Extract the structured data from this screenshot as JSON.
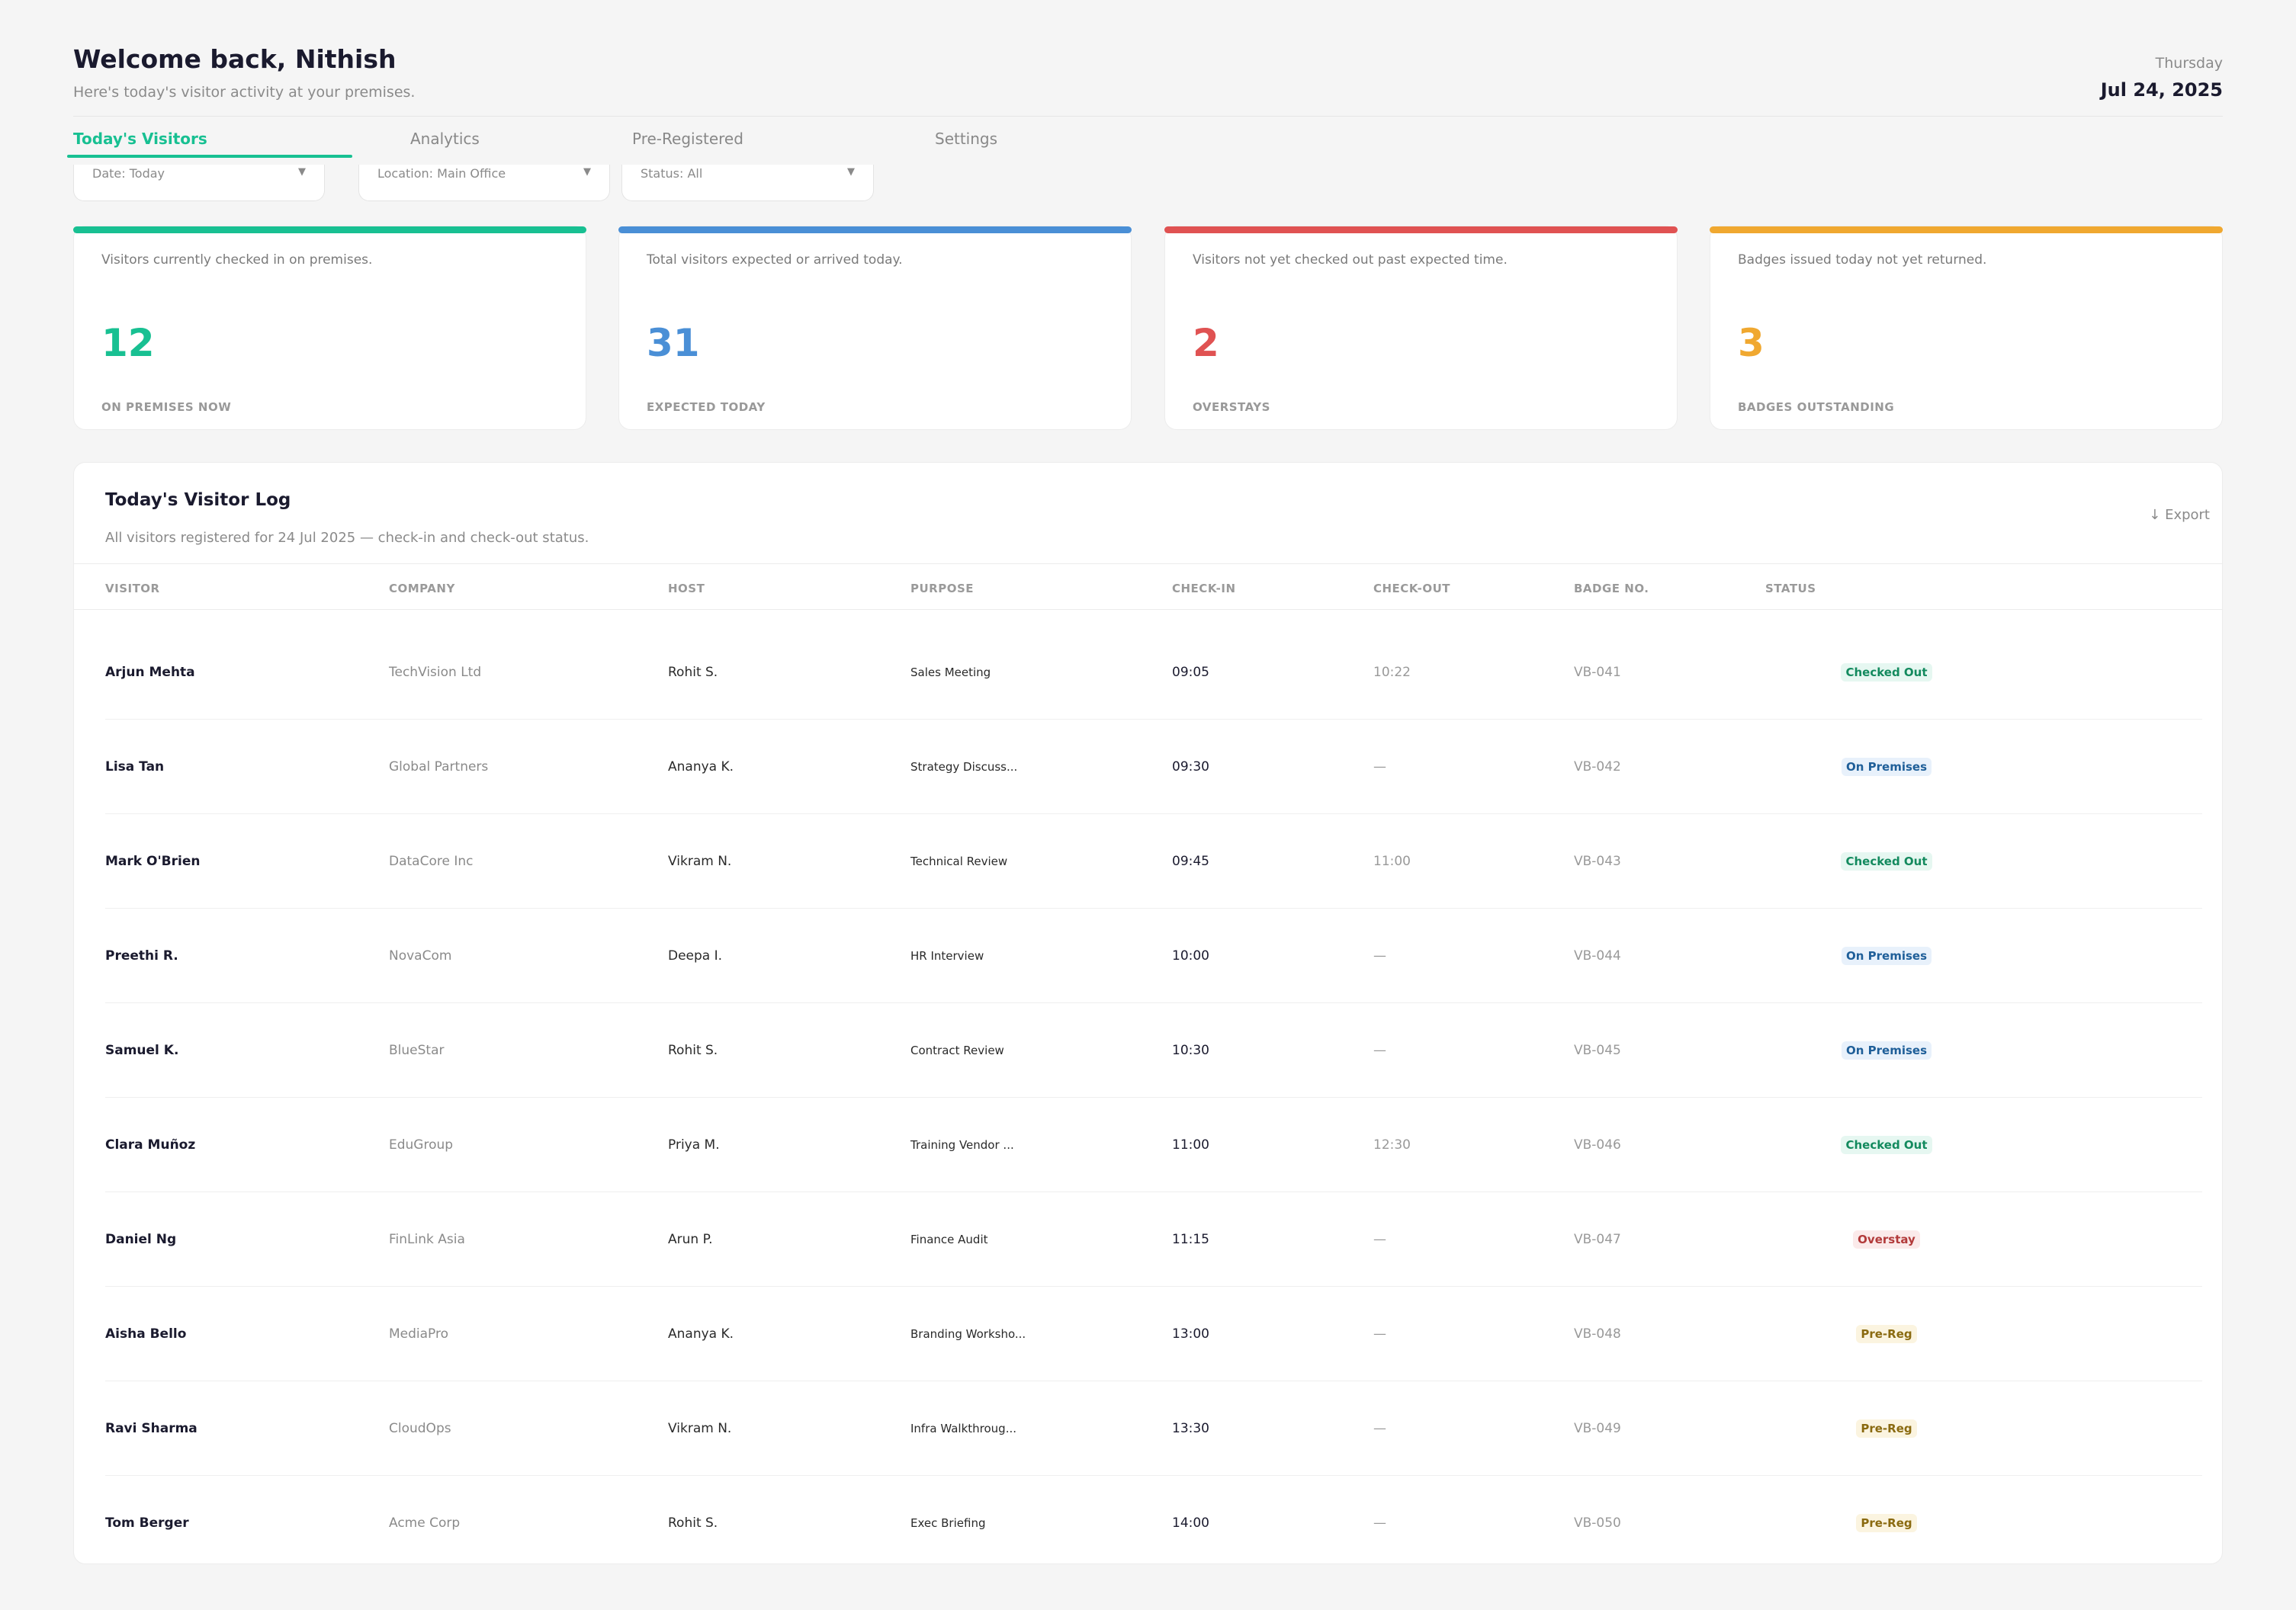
{
  "header": {
    "greeting": "Welcome back, Nithish",
    "subtitle": "Here's today's visitor activity at your premises.",
    "weekday": "Thursday",
    "date": "Jul 24, 2025"
  },
  "tabs": [
    {
      "label": "Today's Visitors",
      "active": true
    },
    {
      "label": "Analytics",
      "active": false
    },
    {
      "label": "Pre-Registered",
      "active": false
    },
    {
      "label": "Settings",
      "active": false
    }
  ],
  "filters": {
    "date": "Date: Today",
    "location": "Location: Main Office",
    "status": "Status: All"
  },
  "stats": [
    {
      "desc": "Visitors currently checked in on premises.",
      "value": "12",
      "caption": "ON PREMISES NOW",
      "color": "#18c092"
    },
    {
      "desc": "Total visitors expected or arrived today.",
      "value": "31",
      "caption": "EXPECTED TODAY",
      "color": "#4a8fd6"
    },
    {
      "desc": "Visitors not yet checked out past expected time.",
      "value": "2",
      "caption": "OVERSTAYS",
      "color": "#e05252"
    },
    {
      "desc": "Badges issued today not yet returned.",
      "value": "3",
      "caption": "BADGES OUTSTANDING",
      "color": "#f0a830"
    }
  ],
  "log": {
    "title": "Today's Visitor Log",
    "subtitle": "All visitors registered for 24 Jul 2025 — check-in and check-out status.",
    "export_label": "↓ Export",
    "columns": [
      "VISITOR",
      "COMPANY",
      "HOST",
      "PURPOSE",
      "CHECK-IN",
      "CHECK-OUT",
      "BADGE NO.",
      "STATUS"
    ],
    "rows": [
      {
        "visitor": "Arjun Mehta",
        "company": "TechVision Ltd",
        "host": "Rohit S.",
        "purpose": "Sales Meeting",
        "checkin": "09:05",
        "checkout": "10:22",
        "badge": "VB-041",
        "status": "Checked Out",
        "kind": "out"
      },
      {
        "visitor": "Lisa Tan",
        "company": "Global Partners",
        "host": "Ananya K.",
        "purpose": "Strategy Discuss...",
        "checkin": "09:30",
        "checkout": "—",
        "badge": "VB-042",
        "status": "On Premises",
        "kind": "prem"
      },
      {
        "visitor": "Mark O'Brien",
        "company": "DataCore Inc",
        "host": "Vikram N.",
        "purpose": "Technical Review",
        "checkin": "09:45",
        "checkout": "11:00",
        "badge": "VB-043",
        "status": "Checked Out",
        "kind": "out"
      },
      {
        "visitor": "Preethi R.",
        "company": "NovaCom",
        "host": "Deepa I.",
        "purpose": "HR Interview",
        "checkin": "10:00",
        "checkout": "—",
        "badge": "VB-044",
        "status": "On Premises",
        "kind": "prem"
      },
      {
        "visitor": "Samuel K.",
        "company": "BlueStar",
        "host": "Rohit S.",
        "purpose": "Contract Review",
        "checkin": "10:30",
        "checkout": "—",
        "badge": "VB-045",
        "status": "On Premises",
        "kind": "prem"
      },
      {
        "visitor": "Clara Muñoz",
        "company": "EduGroup",
        "host": "Priya M.",
        "purpose": "Training Vendor ...",
        "checkin": "11:00",
        "checkout": "12:30",
        "badge": "VB-046",
        "status": "Checked Out",
        "kind": "out"
      },
      {
        "visitor": "Daniel Ng",
        "company": "FinLink Asia",
        "host": "Arun P.",
        "purpose": "Finance Audit",
        "checkin": "11:15",
        "checkout": "—",
        "badge": "VB-047",
        "status": "Overstay",
        "kind": "over"
      },
      {
        "visitor": "Aisha Bello",
        "company": "MediaPro",
        "host": "Ananya K.",
        "purpose": "Branding Worksho...",
        "checkin": "13:00",
        "checkout": "—",
        "badge": "VB-048",
        "status": "Pre-Reg",
        "kind": "pre"
      },
      {
        "visitor": "Ravi Sharma",
        "company": "CloudOps",
        "host": "Vikram N.",
        "purpose": "Infra Walkthroug...",
        "checkin": "13:30",
        "checkout": "—",
        "badge": "VB-049",
        "status": "Pre-Reg",
        "kind": "pre"
      },
      {
        "visitor": "Tom Berger",
        "company": "Acme Corp",
        "host": "Rohit S.",
        "purpose": "Exec Briefing",
        "checkin": "14:00",
        "checkout": "—",
        "badge": "VB-050",
        "status": "Pre-Reg",
        "kind": "pre"
      }
    ]
  }
}
